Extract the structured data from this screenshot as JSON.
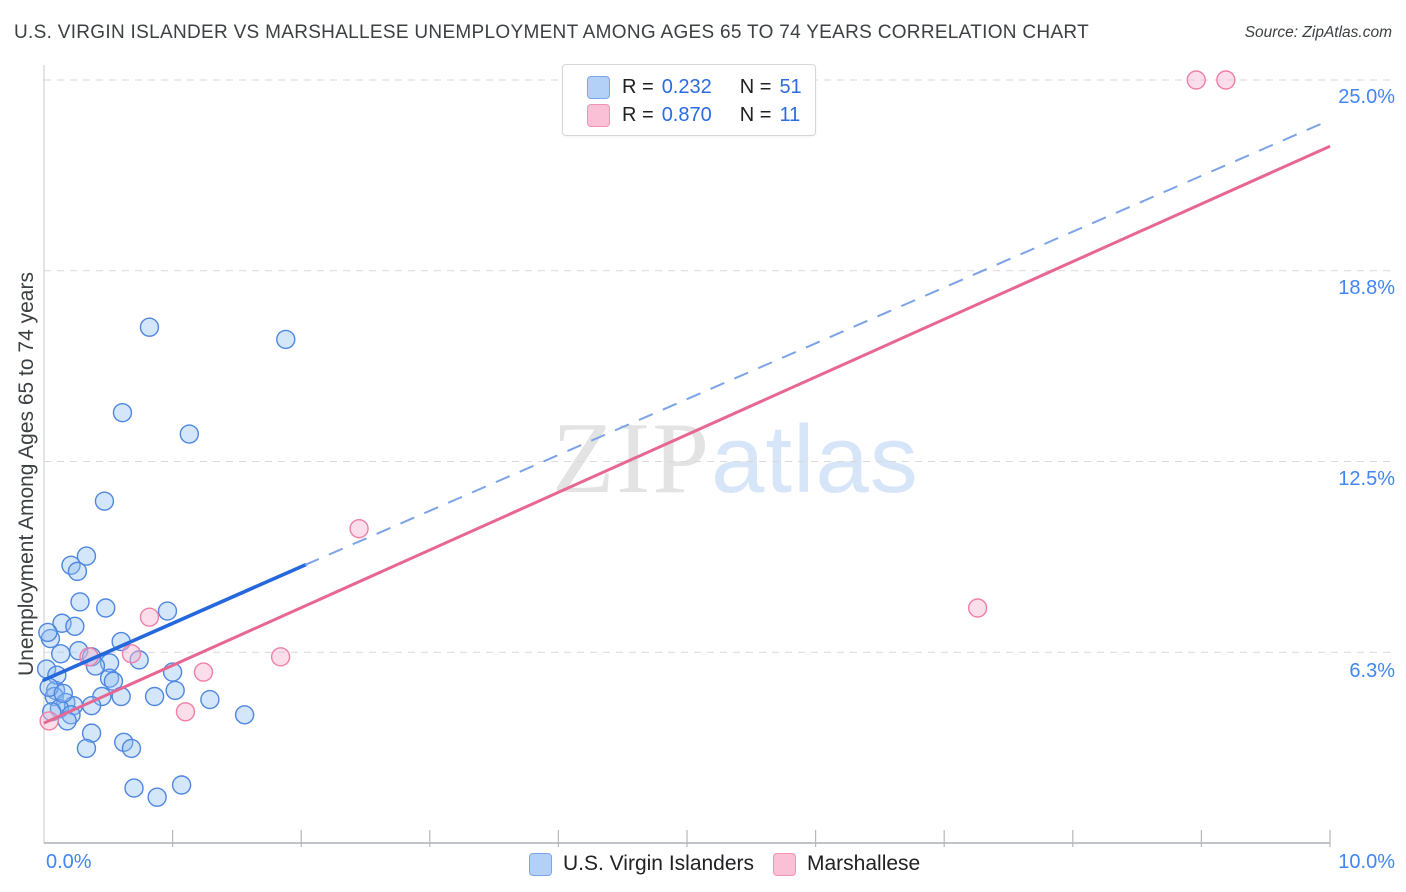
{
  "title": "U.S. VIRGIN ISLANDER VS MARSHALLESE UNEMPLOYMENT AMONG AGES 65 TO 74 YEARS CORRELATION CHART",
  "source": "Source: ZipAtlas.com",
  "watermark": {
    "zip": "ZIP",
    "atlas": "atlas"
  },
  "y_axis": {
    "label": "Unemployment Among Ages 65 to 74 years",
    "tick_labels": [
      "25.0%",
      "18.8%",
      "12.5%",
      "6.3%"
    ]
  },
  "x_axis": {
    "min_label": "0.0%",
    "max_label": "10.0%"
  },
  "legend_box": {
    "rows": [
      {
        "r_label": "R =",
        "r_value": "0.232",
        "n_label": "N =",
        "n_value": "51"
      },
      {
        "r_label": "R =",
        "r_value": "0.870",
        "n_label": "N =",
        "n_value": "11"
      }
    ]
  },
  "bottom_legend": [
    {
      "label": "U.S. Virgin Islanders"
    },
    {
      "label": "Marshallese"
    }
  ],
  "colors": {
    "blue_point_stroke": "#4e86e0",
    "blue_point_fill": "rgba(143,188,242,0.38)",
    "pink_point_stroke": "#ef7fa8",
    "pink_point_fill": "rgba(247,182,207,0.45)",
    "blue_trend": "#2468db",
    "blue_trend_dashed": "#7ba3e6",
    "pink_trend": "#e76792",
    "gridline": "#d9d9d9",
    "x_axis_line": "#9aa0a6",
    "y_axis_line": "#d5d5d5",
    "tick_mark": "#b8b8b8",
    "tick_label_blue": "#4285f4",
    "title_gray": "#3c4043"
  },
  "chart_data": {
    "type": "scatter",
    "xlabel": "",
    "ylabel": "Unemployment Among Ages 65 to 74 years",
    "xlim": [
      0,
      10
    ],
    "ylim": [
      0,
      25.5
    ],
    "x_tick_percents": [
      1,
      2,
      3,
      4,
      5,
      6,
      7,
      8,
      9,
      10
    ],
    "y_gridline_percents": [
      6.25,
      12.5,
      18.75,
      25.0
    ],
    "series": [
      {
        "name": "U.S. Virgin Islanders",
        "R": 0.232,
        "N": 51,
        "points": [
          [
            0.82,
            16.9
          ],
          [
            1.88,
            16.5
          ],
          [
            0.61,
            14.1
          ],
          [
            1.13,
            13.4
          ],
          [
            0.47,
            11.2
          ],
          [
            0.33,
            9.4
          ],
          [
            0.21,
            9.1
          ],
          [
            0.26,
            8.9
          ],
          [
            0.28,
            7.9
          ],
          [
            0.48,
            7.7
          ],
          [
            0.96,
            7.6
          ],
          [
            0.14,
            7.2
          ],
          [
            0.24,
            7.1
          ],
          [
            0.05,
            6.7
          ],
          [
            0.6,
            6.6
          ],
          [
            0.27,
            6.3
          ],
          [
            0.13,
            6.2
          ],
          [
            0.37,
            6.1
          ],
          [
            0.51,
            5.9
          ],
          [
            0.74,
            6.0
          ],
          [
            1.0,
            5.6
          ],
          [
            0.51,
            5.4
          ],
          [
            0.54,
            5.3
          ],
          [
            0.09,
            5.0
          ],
          [
            0.08,
            4.8
          ],
          [
            0.17,
            4.6
          ],
          [
            0.23,
            4.5
          ],
          [
            0.12,
            4.4
          ],
          [
            0.21,
            4.2
          ],
          [
            0.45,
            4.8
          ],
          [
            0.37,
            4.5
          ],
          [
            0.6,
            4.8
          ],
          [
            0.86,
            4.8
          ],
          [
            1.02,
            5.0
          ],
          [
            1.29,
            4.7
          ],
          [
            1.56,
            4.2
          ],
          [
            0.37,
            3.6
          ],
          [
            0.33,
            3.1
          ],
          [
            0.62,
            3.3
          ],
          [
            0.68,
            3.1
          ],
          [
            0.7,
            1.8
          ],
          [
            0.88,
            1.5
          ],
          [
            1.07,
            1.9
          ],
          [
            0.03,
            6.9
          ],
          [
            0.02,
            5.7
          ],
          [
            0.1,
            5.5
          ],
          [
            0.04,
            5.1
          ],
          [
            0.15,
            4.9
          ],
          [
            0.06,
            4.3
          ],
          [
            0.18,
            4.0
          ],
          [
            0.4,
            5.8
          ]
        ]
      },
      {
        "name": "Marshallese",
        "R": 0.87,
        "N": 11,
        "points": [
          [
            0.04,
            4.0
          ],
          [
            0.35,
            6.1
          ],
          [
            0.68,
            6.2
          ],
          [
            0.82,
            7.4
          ],
          [
            1.1,
            4.3
          ],
          [
            1.24,
            5.6
          ],
          [
            1.84,
            6.1
          ],
          [
            2.45,
            10.3
          ],
          [
            7.26,
            7.7
          ],
          [
            8.96,
            25.0
          ],
          [
            9.19,
            25.0
          ]
        ]
      }
    ],
    "trend_lines": [
      {
        "series": "U.S. Virgin Islanders",
        "solid_from": [
          0,
          5.34
        ],
        "solid_to": [
          2.03,
          9.11
        ],
        "dashed_from": [
          2.03,
          9.11
        ],
        "dashed_to": [
          10,
          23.69
        ]
      },
      {
        "series": "Marshallese",
        "solid_from": [
          0,
          3.93
        ],
        "solid_to": [
          10,
          22.83
        ]
      }
    ],
    "legend_position": "top-center and bottom-center",
    "grid": "horizontal dashed only"
  }
}
